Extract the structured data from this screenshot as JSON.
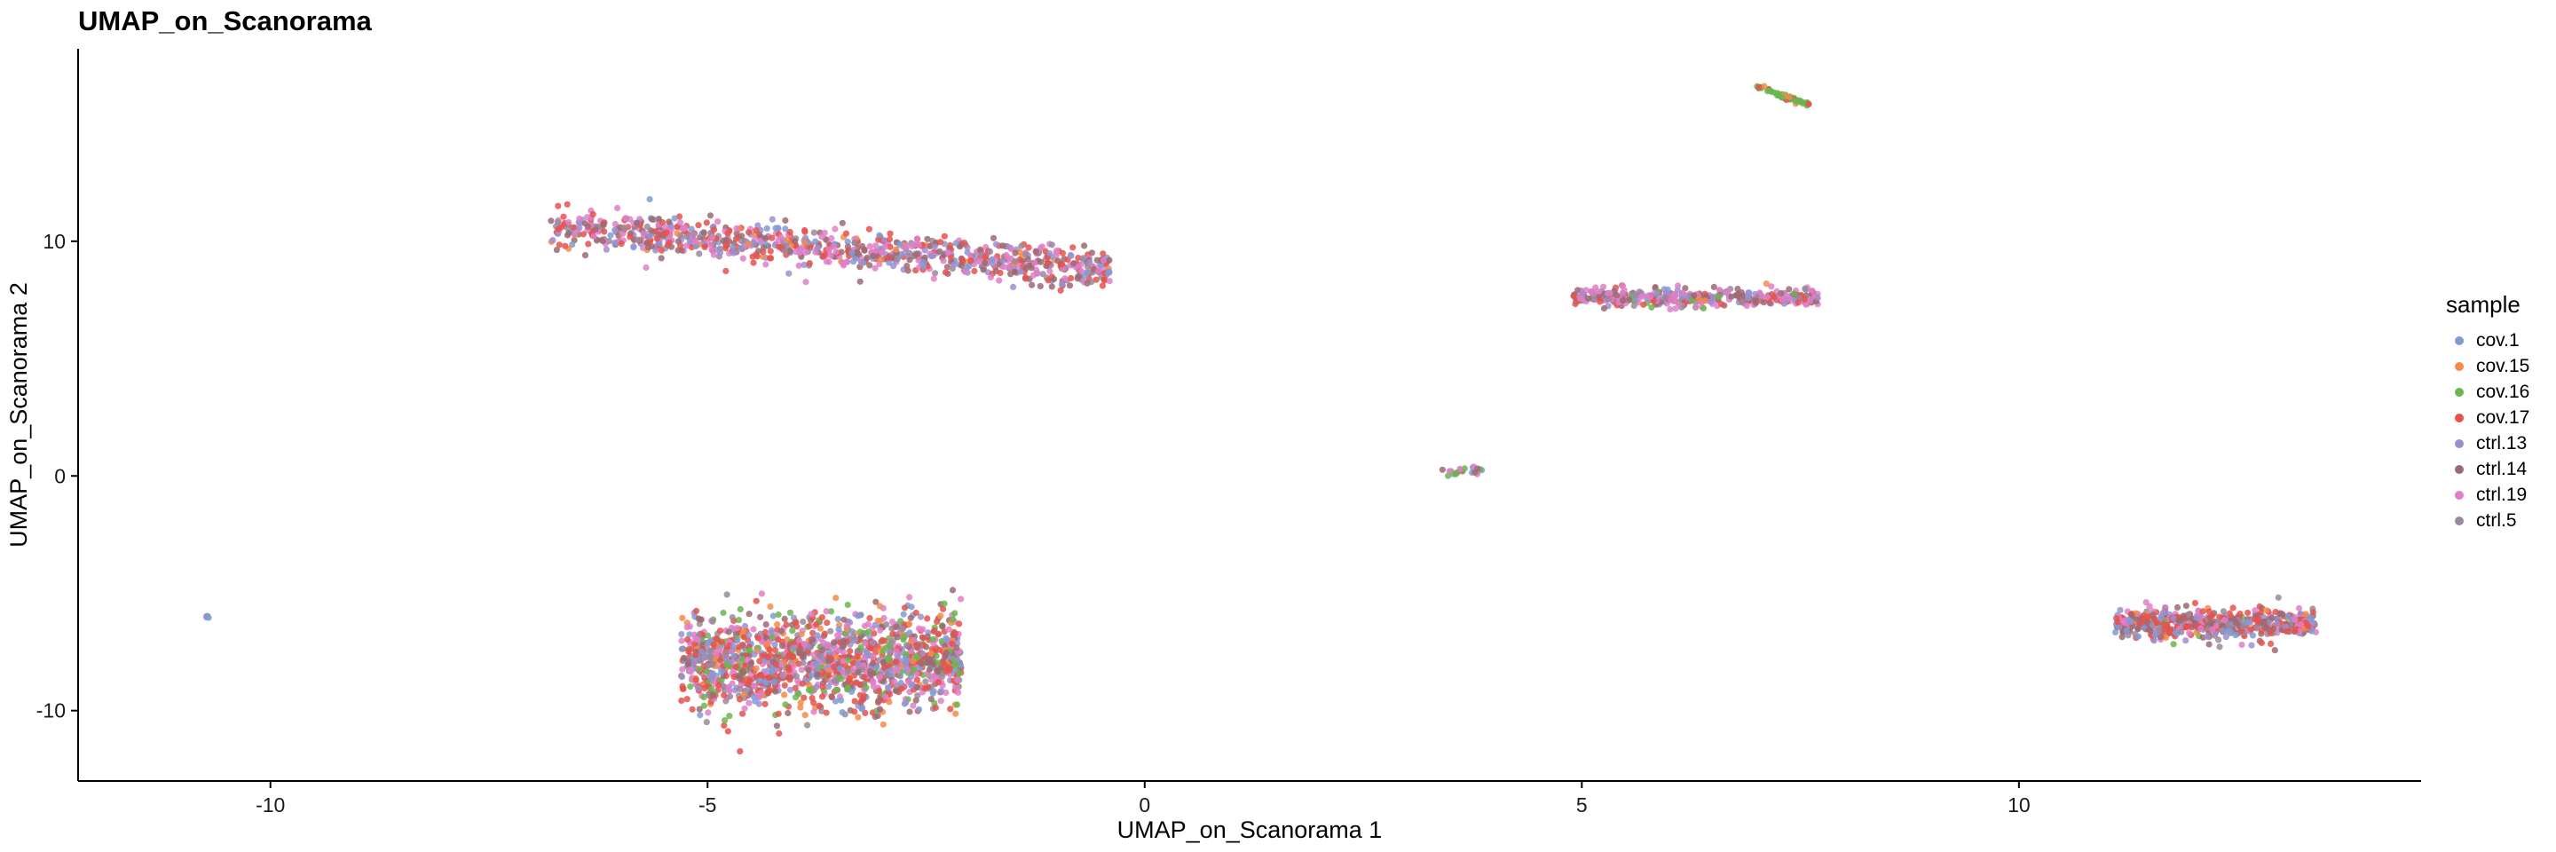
{
  "chart_data": {
    "type": "scatter",
    "title": "UMAP_on_Scanorama",
    "xlabel": "UMAP_on_Scanorama 1",
    "ylabel": "UMAP_on_Scanorama 2",
    "xlim": [
      -12.2,
      14.6
    ],
    "ylim": [
      -13.0,
      18.2
    ],
    "xticks": [
      -10,
      -5,
      0,
      5,
      10
    ],
    "yticks": [
      -10,
      0,
      10
    ],
    "grid": false,
    "legend": {
      "title": "sample",
      "placement": "right"
    },
    "series": [
      {
        "name": "cov.1",
        "color": "#7F9CD6"
      },
      {
        "name": "cov.15",
        "color": "#F58C4A"
      },
      {
        "name": "cov.16",
        "color": "#6BB64F"
      },
      {
        "name": "cov.17",
        "color": "#E5524C"
      },
      {
        "name": "ctrl.13",
        "color": "#9C8FD0"
      },
      {
        "name": "ctrl.14",
        "color": "#9E6A72"
      },
      {
        "name": "ctrl.19",
        "color": "#E07FC8"
      },
      {
        "name": "ctrl.5",
        "color": "#9A8A9E"
      }
    ],
    "clusters": [
      {
        "label": "upper-left band",
        "x_range": [
          -6.8,
          -0.4
        ],
        "y_center": 9.6,
        "y_spread": 0.9,
        "n": 900,
        "mix": [
          0.08,
          0.03,
          0.0,
          0.22,
          0.1,
          0.22,
          0.25,
          0.1
        ]
      },
      {
        "label": "upper-right band",
        "x_range": [
          4.9,
          7.7
        ],
        "y_center": 7.6,
        "y_spread": 0.45,
        "n": 380,
        "mix": [
          0.08,
          0.02,
          0.05,
          0.12,
          0.08,
          0.25,
          0.3,
          0.1
        ]
      },
      {
        "label": "top streak",
        "x_range": [
          7.0,
          7.6
        ],
        "y_center": 16.2,
        "y_spread": 0.1,
        "n": 60,
        "mix": [
          0.0,
          0.1,
          0.75,
          0.15,
          0.0,
          0.0,
          0.0,
          0.0
        ]
      },
      {
        "label": "center small",
        "x_range": [
          3.4,
          3.9
        ],
        "y_center": 0.2,
        "y_spread": 0.2,
        "n": 20,
        "mix": [
          0.2,
          0.0,
          0.4,
          0.0,
          0.0,
          0.2,
          0.2,
          0.0
        ]
      },
      {
        "label": "far-left point",
        "x_range": [
          -10.8,
          -10.7
        ],
        "y_center": -6.0,
        "y_spread": 0.05,
        "n": 5,
        "mix": [
          0.3,
          0.0,
          0.4,
          0.0,
          0.3,
          0.0,
          0.0,
          0.0
        ]
      },
      {
        "label": "lower-left cluster",
        "x_range": [
          -5.3,
          -2.1
        ],
        "y_center": -7.9,
        "y_spread": 2.2,
        "n": 1500,
        "mix": [
          0.1,
          0.06,
          0.1,
          0.25,
          0.08,
          0.15,
          0.18,
          0.08
        ]
      },
      {
        "label": "lower-right cluster",
        "x_range": [
          11.1,
          13.4
        ],
        "y_center": -6.3,
        "y_spread": 0.7,
        "n": 550,
        "mix": [
          0.08,
          0.03,
          0.03,
          0.28,
          0.1,
          0.2,
          0.18,
          0.1
        ]
      }
    ]
  }
}
